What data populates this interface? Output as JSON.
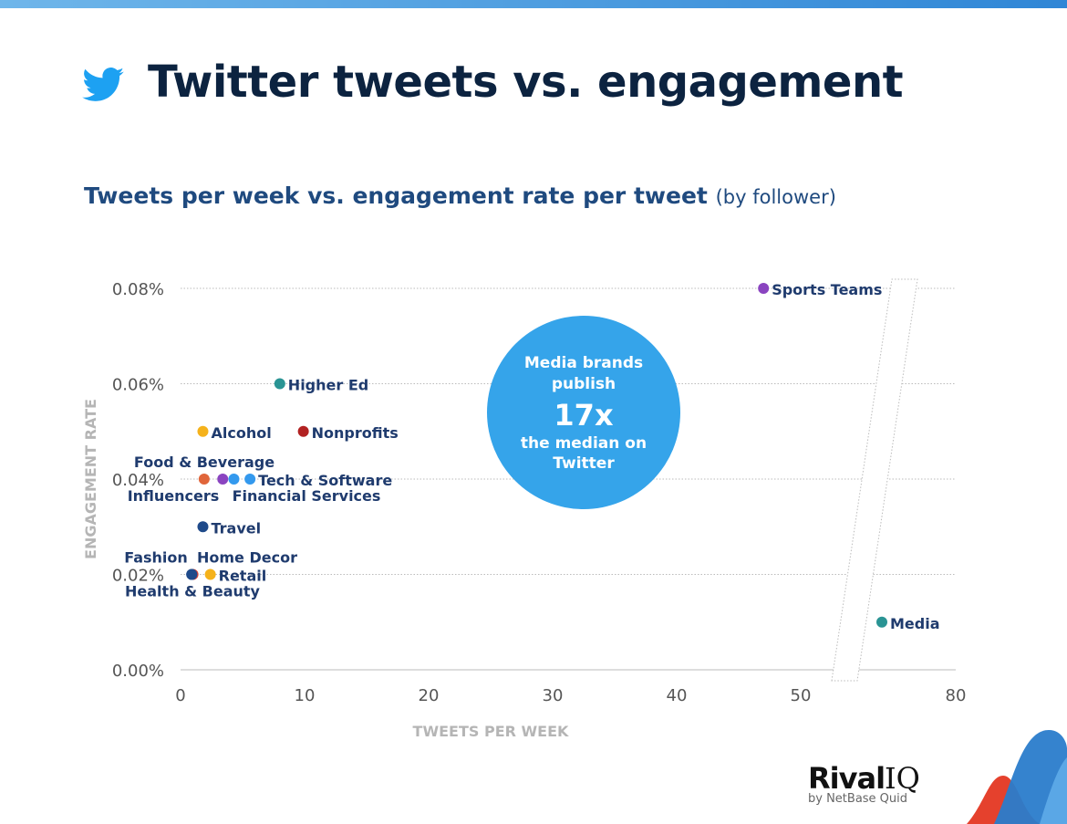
{
  "title": "Twitter tweets vs. engagement",
  "subtitle": "Tweets per week vs. engagement rate per tweet",
  "subtitle_paren": "(by follower)",
  "logo": {
    "name": "Rival IQ",
    "tagline": "by NetBase Quid"
  },
  "icons": {
    "brand": "twitter-bird-icon"
  },
  "colors": {
    "title": "#0c2340",
    "callout": "#35a4ea",
    "label": "#1f3b6e"
  },
  "callout": {
    "line1": "Media brands",
    "line2": "publish",
    "big": "17x",
    "line3": "the median on",
    "line4": "Twitter"
  },
  "chart_data": {
    "type": "scatter",
    "xlabel": "TWEETS PER WEEK",
    "ylabel": "ENGAGEMENT RATE",
    "xlim": [
      0,
      80
    ],
    "ylim": [
      0,
      0.08
    ],
    "x_axis_break": true,
    "x_ticks": [
      "0",
      "10",
      "20",
      "30",
      "40",
      "50",
      "80"
    ],
    "y_ticks": [
      "0.00%",
      "0.02%",
      "0.04%",
      "0.06%",
      "0.08%"
    ],
    "grid": "horizontal dotted",
    "points": [
      {
        "name": "Sports Teams",
        "x": 47,
        "y": 0.08,
        "color": "#8a44c0"
      },
      {
        "name": "Higher Ed",
        "x": 8,
        "y": 0.06,
        "color": "#2a9494"
      },
      {
        "name": "Alcohol",
        "x": 1.8,
        "y": 0.05,
        "color": "#f5b21b"
      },
      {
        "name": "Nonprofits",
        "x": 9.9,
        "y": 0.05,
        "color": "#b22222"
      },
      {
        "name": "Food & Beverage",
        "x": 1.9,
        "y": 0.04,
        "color": "#e0653a"
      },
      {
        "name": "Influencers",
        "x": 3.4,
        "y": 0.04,
        "color": "#8a44c0"
      },
      {
        "name": "Financial Services",
        "x": 4.3,
        "y": 0.04,
        "color": "#3399ee"
      },
      {
        "name": "Tech & Software",
        "x": 5.6,
        "y": 0.04,
        "color": "#3399ee"
      },
      {
        "name": "Travel",
        "x": 1.8,
        "y": 0.03,
        "color": "#1f4a8a"
      },
      {
        "name": "Home Decor",
        "x": 1.0,
        "y": 0.02,
        "color": "#d9453a"
      },
      {
        "name": "Fashion",
        "x": 0.9,
        "y": 0.02,
        "color": "#1f4a8a"
      },
      {
        "name": "Health & Beauty",
        "x": 0.9,
        "y": 0.02,
        "color": "#1f4a8a"
      },
      {
        "name": "Retail",
        "x": 2.4,
        "y": 0.02,
        "color": "#f5b21b"
      },
      {
        "name": "Media",
        "x": 65,
        "y": 0.01,
        "color": "#2a9494"
      }
    ]
  }
}
